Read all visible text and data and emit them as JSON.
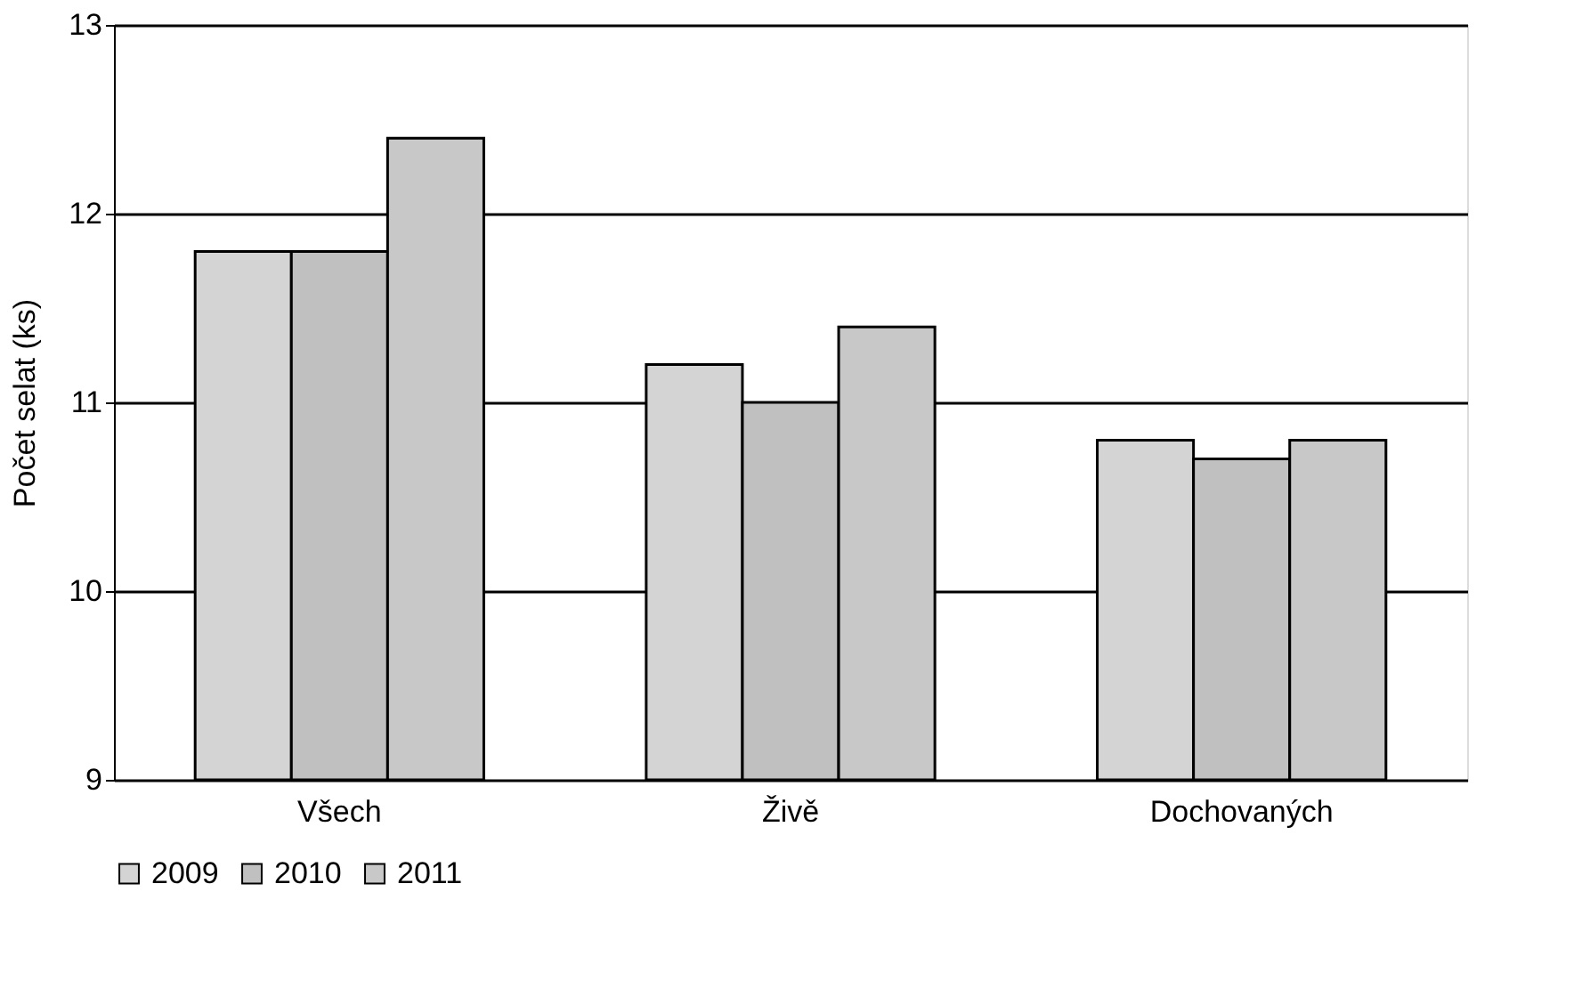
{
  "chart_data": {
    "type": "bar",
    "ylabel": "Počet selat (ks)",
    "categories": [
      "Všech",
      "Živě",
      "Dochovaných"
    ],
    "series": [
      {
        "name": "2009",
        "color": "#d4d4d4",
        "values": [
          11.8,
          11.2,
          10.8
        ]
      },
      {
        "name": "2010",
        "color": "#c0c0c0",
        "values": [
          11.8,
          11.0,
          10.7
        ]
      },
      {
        "name": "2011",
        "color": "#c8c8c8",
        "values": [
          12.4,
          11.4,
          10.8
        ]
      }
    ],
    "ylim": [
      9,
      13
    ],
    "yticks": [
      9,
      10,
      11,
      12,
      13
    ],
    "grid": "y",
    "legend": "bottom"
  }
}
